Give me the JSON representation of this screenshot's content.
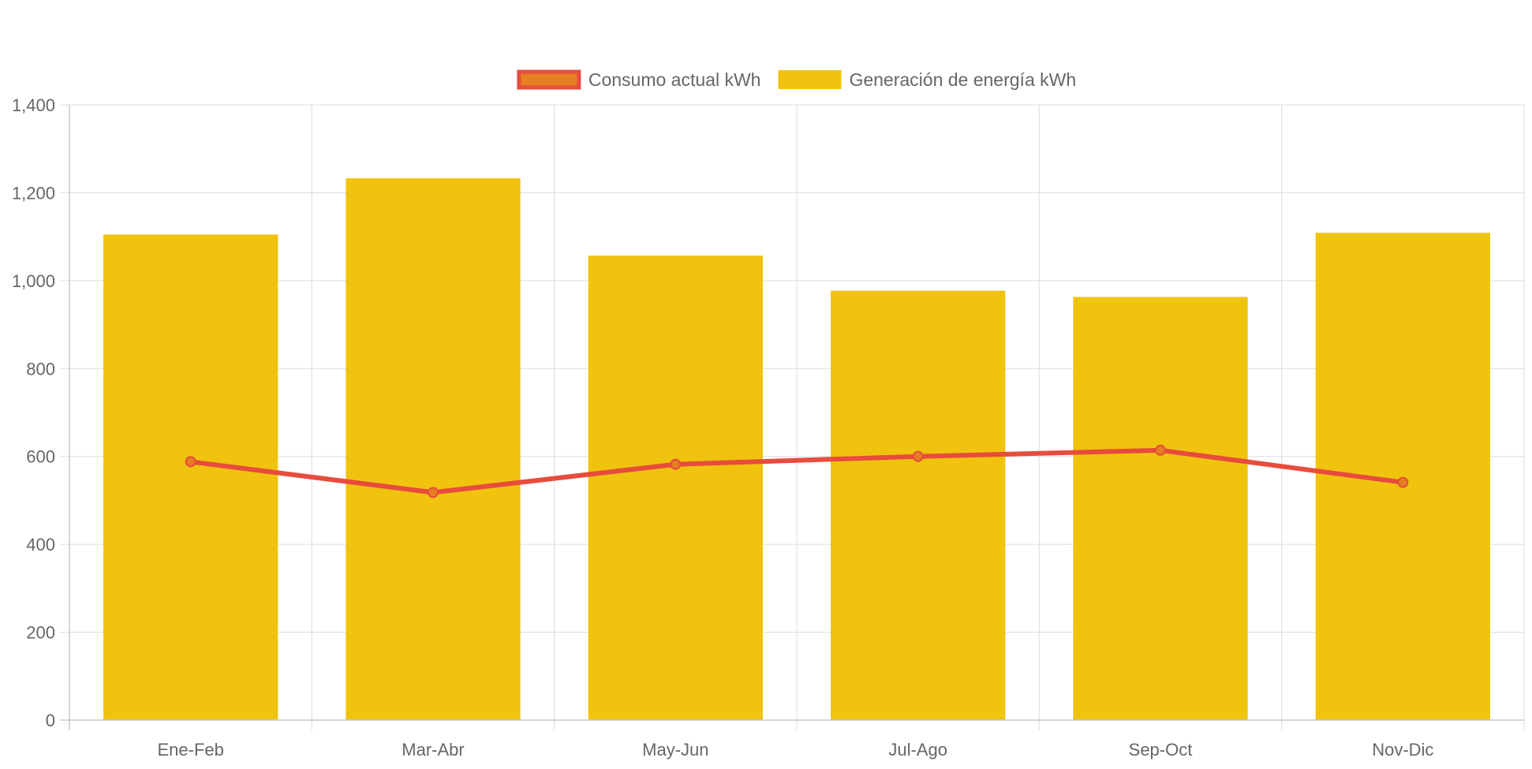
{
  "chart_data": {
    "type": "bar",
    "categories": [
      "Ene-Feb",
      "Mar-Abr",
      "May-Jun",
      "Jul-Ago",
      "Sep-Oct",
      "Nov-Dic"
    ],
    "series": [
      {
        "name": "Generación de energía kWh",
        "type": "bar",
        "color": "#f0c30f",
        "values": [
          1105,
          1233,
          1057,
          977,
          963,
          1109
        ]
      },
      {
        "name": "Consumo actual kWh",
        "type": "line",
        "color": "#e74c3c",
        "point_fill": "#e67e22",
        "values": [
          588,
          518,
          582,
          600,
          614,
          541
        ]
      }
    ],
    "legend_order": [
      1,
      0
    ],
    "ylim": [
      0,
      1400
    ],
    "yticks": [
      0,
      200,
      400,
      600,
      800,
      1000,
      1200,
      1400
    ],
    "ytick_labels": [
      "0",
      "200",
      "400",
      "600",
      "800",
      "1,000",
      "1,200",
      "1,400"
    ],
    "grid": true,
    "legend_position": "top-center",
    "title": "",
    "xlabel": "",
    "ylabel": ""
  }
}
